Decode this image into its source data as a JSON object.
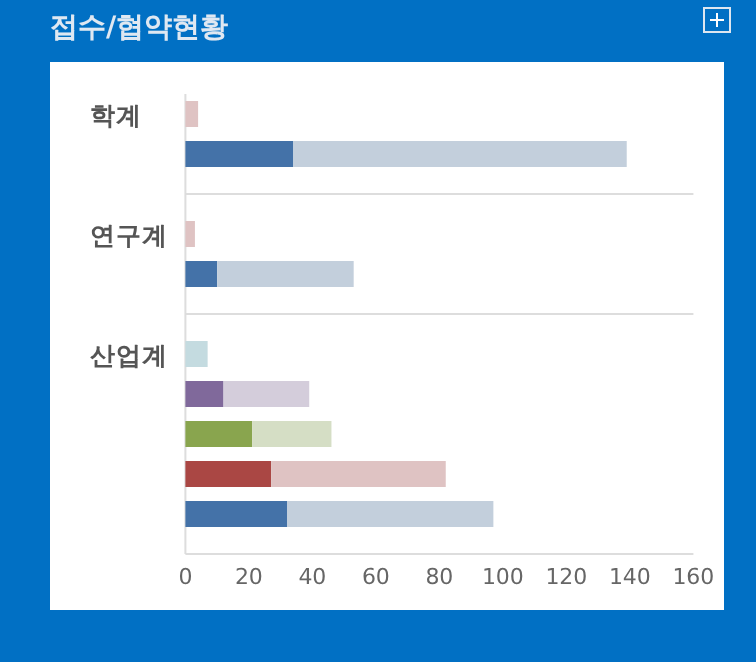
{
  "chart_data": {
    "type": "bar",
    "orientation": "horizontal",
    "stacked": true,
    "title": "접수/협약현황",
    "categories": [
      "학계",
      null,
      null,
      "연구계",
      null,
      null,
      "산업계",
      null,
      null,
      null,
      null
    ],
    "xlim": [
      0,
      160
    ],
    "xticks": [
      0,
      20,
      40,
      60,
      80,
      100,
      120,
      140,
      160
    ],
    "series": [
      {
        "colors": [
          null,
          "#4472a8",
          null,
          null,
          "#4472a8",
          null,
          null,
          "#80699b",
          "#89a54e",
          "#aa4744",
          "#4472a8"
        ],
        "values": [
          null,
          34,
          null,
          null,
          10,
          null,
          null,
          12,
          21,
          27,
          32
        ]
      },
      {
        "colors": [
          "#dfc3c3",
          "#c3cfdc",
          null,
          "#dfc3c3",
          "#c3cfdc",
          null,
          "#c4dbe0",
          "#d4cddb",
          "#d5dec5",
          "#dfc3c3",
          "#c3cfdc"
        ],
        "values": [
          4,
          105,
          null,
          3,
          43,
          null,
          7,
          27,
          25,
          55,
          65
        ]
      }
    ]
  }
}
